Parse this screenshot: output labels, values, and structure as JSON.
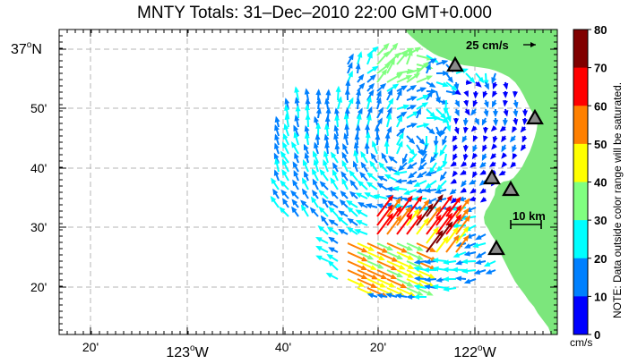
{
  "map": {
    "title": "MNTY Totals: 31–Dec–2010 22:00 GMT+0.000",
    "lat_labels": [
      {
        "deg": "37",
        "sup": "o",
        "suffix": "N"
      },
      {
        "text": "50'"
      },
      {
        "text": "40'"
      },
      {
        "text": "30'"
      },
      {
        "text": "20'"
      }
    ],
    "lon_labels_minor": [
      "20'",
      "40'",
      "20'"
    ],
    "lon_labels_major": [
      {
        "deg": "123",
        "sup": "o",
        "suffix": "W"
      },
      {
        "deg": "122",
        "sup": "o",
        "suffix": "W"
      }
    ],
    "scale_arrow_label": "25 cm/s",
    "scale_bar_label": "10 km",
    "stations": [
      "station-1",
      "station-2",
      "station-3",
      "station-4",
      "station-5"
    ],
    "land_color": "#7ce67c",
    "grid_color": "#b4b4b4"
  },
  "colorbar": {
    "ticks": [
      "80",
      "70",
      "60",
      "50",
      "40",
      "30",
      "20",
      "10",
      "0"
    ],
    "colors": [
      "#800000",
      "#ff0000",
      "#ff8000",
      "#ffff00",
      "#80ff80",
      "#00ffff",
      "#0080ff",
      "#0000ff"
    ],
    "unit": "cm/s",
    "note": "NOTE: Data outside color range will be saturated."
  }
}
